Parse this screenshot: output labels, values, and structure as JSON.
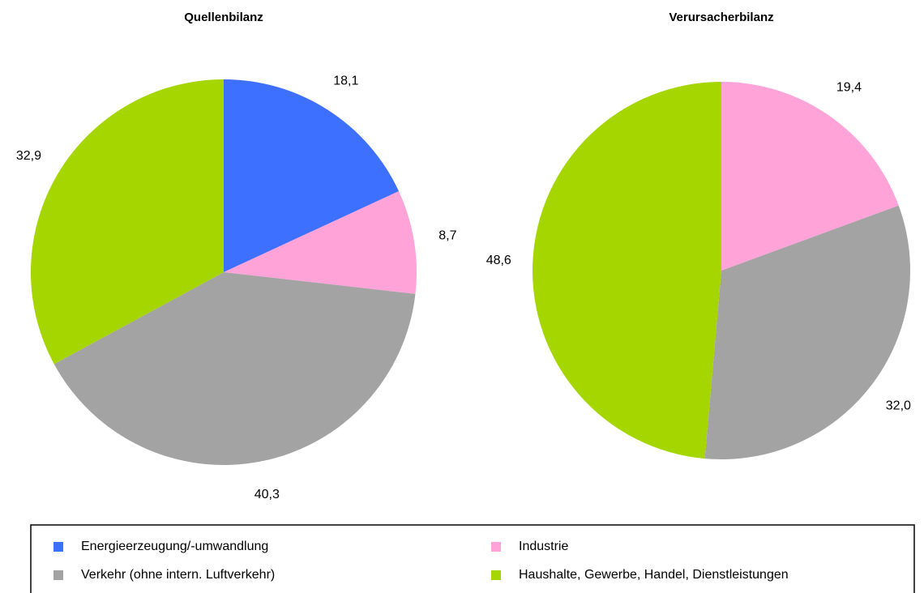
{
  "chart_data": [
    {
      "type": "pie",
      "title": "Quellenbilanz",
      "categories": [
        "Energieerzeugung/-umwandlung",
        "Industrie",
        "Verkehr (ohne intern. Luftverkehr)",
        "Haushalte, Gewerbe, Handel, Dienstleistungen"
      ],
      "values": [
        18.1,
        8.7,
        40.3,
        32.9
      ],
      "value_labels": [
        "18,1",
        "8,7",
        "40,3",
        "32,9"
      ],
      "colors": [
        "#3d70ff",
        "#ffa3d8",
        "#a3a3a3",
        "#a6d600"
      ]
    },
    {
      "type": "pie",
      "title": "Verursacherbilanz",
      "categories": [
        "Industrie",
        "Verkehr (ohne intern. Luftverkehr)",
        "Haushalte, Gewerbe, Handel, Dienstleistungen"
      ],
      "values": [
        19.4,
        32.0,
        48.6
      ],
      "value_labels": [
        "19,4",
        "32,0",
        "48,6"
      ],
      "colors": [
        "#ffa3d8",
        "#a3a3a3",
        "#a6d600"
      ]
    }
  ]
}
